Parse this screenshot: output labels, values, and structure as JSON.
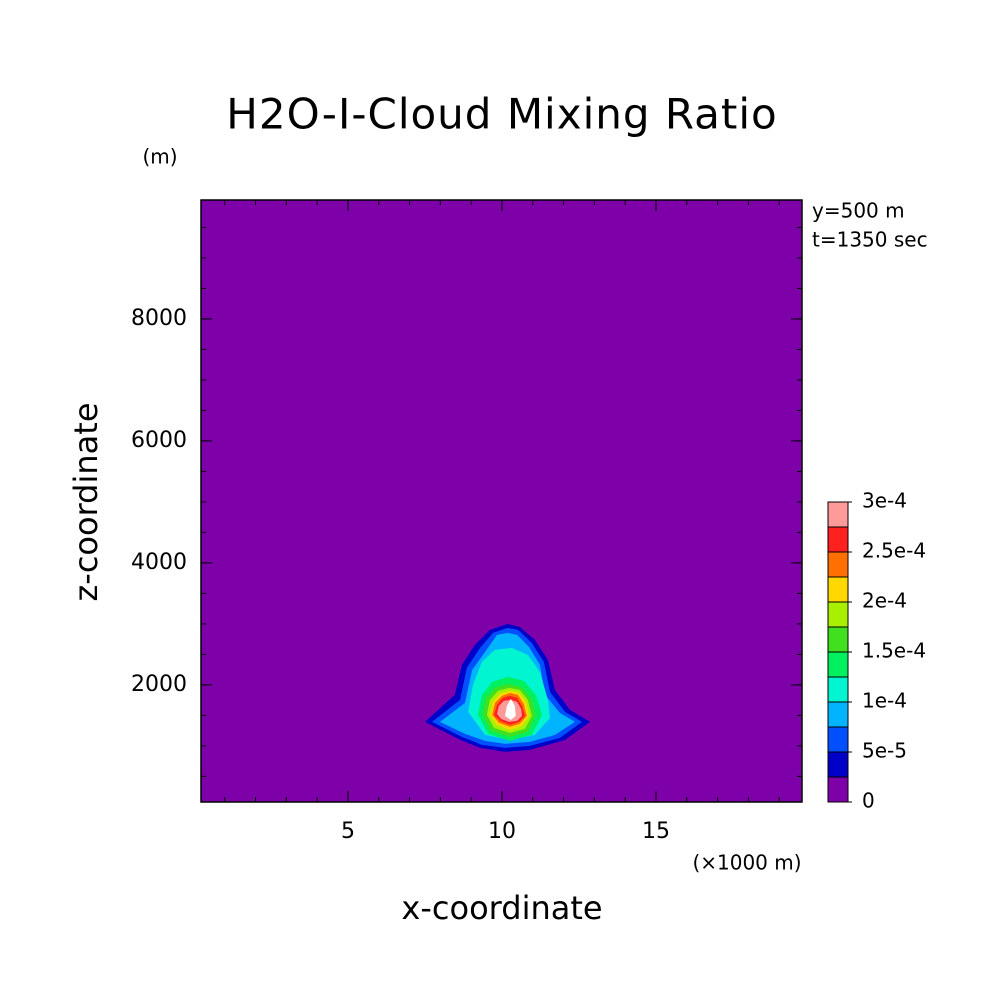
{
  "chart_data": {
    "type": "contour",
    "title": "H2O-I-Cloud Mixing Ratio",
    "x_label": "x-coordinate",
    "y_label": "z-coordinate",
    "x_unit": "(×1000 m)",
    "y_unit": "(m)",
    "annotations": [
      "y=500 m",
      "t=1350 sec"
    ],
    "xlim": [
      0.23,
      19.74
    ],
    "ylim": [
      80,
      9950
    ],
    "xticks": [
      5,
      10,
      15
    ],
    "yticks": [
      2000,
      4000,
      6000,
      8000
    ],
    "xminor": 1,
    "yminor": 500,
    "colorbar": {
      "levels": [
        0,
        2.5e-05,
        5e-05,
        7.5e-05,
        0.0001,
        0.000125,
        0.00015,
        0.000175,
        0.0002,
        0.000225,
        0.00025,
        0.000275,
        0.0003
      ],
      "colors": [
        "#7d00a8",
        "#0000c8",
        "#0050ff",
        "#00b4ff",
        "#00f5d0",
        "#00f060",
        "#40e020",
        "#a8f000",
        "#ffd800",
        "#ff7000",
        "#ff2020",
        "#ff9a9a"
      ],
      "over_color": "#ffffff",
      "ticks": [
        0,
        {
          "value": 5e-05,
          "label": "5e-5"
        },
        {
          "value": 0.0001,
          "label": "1e-4"
        },
        {
          "value": 0.00015,
          "label": "1.5e-4"
        },
        {
          "value": 0.0002,
          "label": "2e-4"
        },
        {
          "value": 0.00025,
          "label": "2.5e-4"
        },
        {
          "value": 0.0003,
          "label": "3e-4"
        }
      ]
    },
    "contours": [
      {
        "level": 2.5e-05,
        "x": [
          7.5,
          8.47,
          8.7,
          9.12,
          9.61,
          10.19,
          10.58,
          11.07,
          11.49,
          11.72,
          12.21,
          12.86,
          12.05,
          10.91,
          10.1,
          9.29,
          8.64
        ],
        "z": [
          1393,
          1836,
          2327,
          2655,
          2901,
          3000,
          2950,
          2737,
          2409,
          1918,
          1590,
          1393,
          1098,
          934,
          901,
          967,
          1098
        ]
      },
      {
        "level": 5e-05,
        "x": [
          7.73,
          8.64,
          8.86,
          9.29,
          9.71,
          10.19,
          10.52,
          10.97,
          11.36,
          11.56,
          12.05,
          12.6,
          11.88,
          10.91,
          10.1,
          9.35,
          8.7
        ],
        "z": [
          1393,
          1754,
          2278,
          2606,
          2852,
          2934,
          2901,
          2688,
          2377,
          1885,
          1557,
          1393,
          1131,
          1000,
          967,
          1016,
          1147
        ]
      },
      {
        "level": 7.5e-05,
        "x": [
          7.99,
          8.8,
          9.03,
          9.45,
          9.84,
          10.19,
          10.49,
          10.88,
          11.23,
          11.4,
          11.88,
          12.37,
          11.72,
          10.91,
          10.1,
          9.45,
          8.8
        ],
        "z": [
          1393,
          1705,
          2245,
          2540,
          2819,
          2852,
          2819,
          2622,
          2327,
          1836,
          1541,
          1393,
          1180,
          1065,
          1033,
          1082,
          1196
        ]
      },
      {
        "level": 0.0001,
        "x": [
          8.9,
          9.06,
          9.35,
          9.77,
          10.32,
          10.84,
          11.23,
          11.49,
          11.56,
          11.07,
          10.26,
          9.45
        ],
        "z": [
          1557,
          2000,
          2377,
          2573,
          2606,
          2491,
          2213,
          1754,
          1459,
          1180,
          1098,
          1180
        ]
      },
      {
        "level": 0.000125,
        "x": [
          9.22,
          9.35,
          9.68,
          10.19,
          10.71,
          11.1,
          11.3,
          10.97,
          10.26,
          9.55
        ],
        "z": [
          1508,
          1836,
          2049,
          2131,
          2065,
          1836,
          1508,
          1180,
          1082,
          1196
        ]
      },
      {
        "level": 0.00015,
        "x": [
          9.38,
          9.48,
          9.77,
          10.19,
          10.62,
          10.94,
          11.1,
          10.84,
          10.26,
          9.64
        ],
        "z": [
          1508,
          1787,
          1950,
          2016,
          1967,
          1787,
          1508,
          1229,
          1147,
          1245
        ]
      },
      {
        "level": 0.000175,
        "x": [
          9.51,
          9.61,
          9.87,
          10.23,
          10.58,
          10.84,
          10.97,
          10.75,
          10.26,
          9.74
        ],
        "z": [
          1508,
          1754,
          1901,
          1950,
          1918,
          1754,
          1491,
          1278,
          1213,
          1295
        ]
      },
      {
        "level": 0.0002,
        "x": [
          9.61,
          9.71,
          9.94,
          10.26,
          10.55,
          10.78,
          10.88,
          10.65,
          10.26,
          9.84
        ],
        "z": [
          1508,
          1721,
          1852,
          1901,
          1868,
          1721,
          1491,
          1328,
          1262,
          1344
        ]
      },
      {
        "level": 0.000225,
        "x": [
          9.68,
          9.77,
          10.0,
          10.26,
          10.52,
          10.71,
          10.81,
          10.58,
          10.26,
          9.9
        ],
        "z": [
          1508,
          1705,
          1819,
          1868,
          1836,
          1688,
          1491,
          1360,
          1311,
          1377
        ]
      },
      {
        "level": 0.00025,
        "x": [
          9.74,
          9.84,
          10.03,
          10.26,
          10.49,
          10.65,
          10.75,
          10.55,
          10.26,
          9.94
        ],
        "z": [
          1508,
          1672,
          1787,
          1819,
          1787,
          1655,
          1491,
          1393,
          1344,
          1410
        ]
      },
      {
        "level": 0.000275,
        "x": [
          9.84,
          9.9,
          10.06,
          10.29,
          10.49,
          10.62,
          10.65,
          10.49,
          10.23,
          9.97
        ],
        "z": [
          1524,
          1655,
          1737,
          1754,
          1721,
          1606,
          1491,
          1410,
          1393,
          1442
        ]
      },
      {
        "level": 0.0003,
        "x": [
          10.1,
          10.16,
          10.29,
          10.42,
          10.45,
          10.29
        ],
        "z": [
          1491,
          1655,
          1770,
          1655,
          1491,
          1426
        ]
      }
    ]
  }
}
